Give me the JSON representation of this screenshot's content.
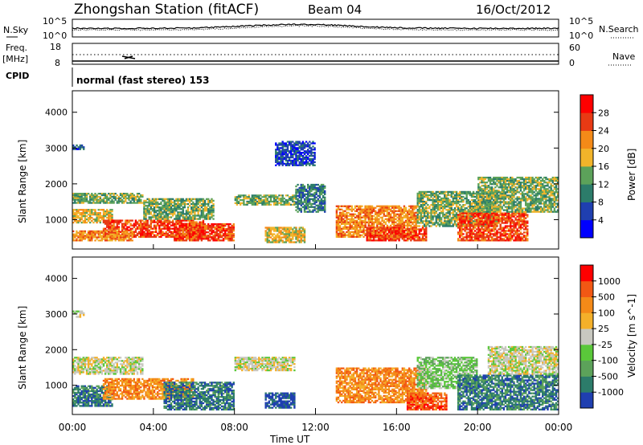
{
  "header": {
    "station_title": "Zhongshan Station (fitACF)",
    "beam": "Beam 04",
    "date": "16/Oct/2012"
  },
  "top_panels": {
    "nsky_label": "N.Sky",
    "nsky_ticks": [
      "10^5",
      "10^0"
    ],
    "nsearch_label": "N.Search",
    "nsearch_ticks": [
      "10^5",
      "10^0"
    ],
    "freq_label_1": "Freq.",
    "freq_label_2": "[MHz]",
    "freq_ticks": [
      "18",
      "8"
    ],
    "nave_label": "Nave",
    "nave_ticks": [
      "60",
      "0"
    ],
    "cpid_label": "CPID",
    "cpid_value": "normal (fast stereo) 153"
  },
  "chart_data": [
    {
      "type": "heatmap",
      "name": "power",
      "ylabel": "Slant Range [km]",
      "yticks": [
        "4000",
        "3000",
        "2000",
        "1000"
      ],
      "ylim": [
        180,
        4600
      ],
      "xlim": [
        0,
        24
      ],
      "colorbar_label": "Power [dB]",
      "colorbar_ticks": [
        "28",
        "24",
        "20",
        "16",
        "12",
        "8",
        "4"
      ],
      "colors": [
        "#0000ff",
        "#1f3fb0",
        "#2c7c6a",
        "#5ca25a",
        "#f2b42a",
        "#f48a18",
        "#e83a14",
        "#ff0000"
      ],
      "regions": [
        {
          "t": [
            0.0,
            0.6
          ],
          "r": [
            2950,
            3100
          ],
          "level": 1
        },
        {
          "t": [
            0.0,
            3.5
          ],
          "r": [
            1450,
            1750
          ],
          "level": 3
        },
        {
          "t": [
            0.0,
            2.0
          ],
          "r": [
            900,
            1300
          ],
          "level": 4
        },
        {
          "t": [
            1.5,
            6.5
          ],
          "r": [
            500,
            1000
          ],
          "level": 6
        },
        {
          "t": [
            5.0,
            8.0
          ],
          "r": [
            400,
            900
          ],
          "level": 6
        },
        {
          "t": [
            0.0,
            3.0
          ],
          "r": [
            400,
            700
          ],
          "level": 5
        },
        {
          "t": [
            3.5,
            7.0
          ],
          "r": [
            1000,
            1600
          ],
          "level": 3
        },
        {
          "t": [
            8.0,
            11.0
          ],
          "r": [
            1400,
            1700
          ],
          "level": 3
        },
        {
          "t": [
            9.5,
            11.5
          ],
          "r": [
            350,
            800
          ],
          "level": 4
        },
        {
          "t": [
            11.0,
            12.5
          ],
          "r": [
            1200,
            2000
          ],
          "level": 2
        },
        {
          "t": [
            13.0,
            17.0
          ],
          "r": [
            500,
            1400
          ],
          "level": 5
        },
        {
          "t": [
            14.5,
            17.5
          ],
          "r": [
            400,
            800
          ],
          "level": 6
        },
        {
          "t": [
            17.0,
            21.0
          ],
          "r": [
            800,
            1800
          ],
          "level": 3
        },
        {
          "t": [
            19.0,
            22.5
          ],
          "r": [
            400,
            1200
          ],
          "level": 6
        },
        {
          "t": [
            20.0,
            24.0
          ],
          "r": [
            1200,
            2200
          ],
          "level": 3
        },
        {
          "t": [
            10.0,
            12.0
          ],
          "r": [
            2500,
            3200
          ],
          "level": 1
        }
      ]
    },
    {
      "type": "heatmap",
      "name": "velocity",
      "ylabel": "Slant Range [km]",
      "yticks": [
        "4000",
        "3000",
        "2000",
        "1000"
      ],
      "ylim": [
        180,
        4600
      ],
      "xlim": [
        0,
        24
      ],
      "colorbar_label": "Velocity [m s^-1]",
      "colorbar_ticks": [
        "1000",
        "500",
        "100",
        "25",
        "-25",
        "-100",
        "-500",
        "-1000"
      ],
      "colors": [
        "#1f3fb0",
        "#2c7c6a",
        "#5ca25a",
        "#5ac83a",
        "#c8c8c0",
        "#f4b02a",
        "#f48a18",
        "#f25814",
        "#ff0000"
      ],
      "regions": [
        {
          "t": [
            0.0,
            3.5
          ],
          "r": [
            1300,
            1800
          ],
          "level": 4
        },
        {
          "t": [
            0.0,
            2.0
          ],
          "r": [
            400,
            1000
          ],
          "level": 1
        },
        {
          "t": [
            1.5,
            6.0
          ],
          "r": [
            600,
            1200
          ],
          "level": 6
        },
        {
          "t": [
            4.5,
            8.0
          ],
          "r": [
            300,
            1100
          ],
          "level": 1
        },
        {
          "t": [
            8.0,
            11.0
          ],
          "r": [
            1400,
            1800
          ],
          "level": 4
        },
        {
          "t": [
            9.5,
            11.0
          ],
          "r": [
            350,
            800
          ],
          "level": 0
        },
        {
          "t": [
            13.0,
            17.5
          ],
          "r": [
            500,
            1500
          ],
          "level": 6
        },
        {
          "t": [
            16.5,
            18.5
          ],
          "r": [
            300,
            800
          ],
          "level": 7
        },
        {
          "t": [
            17.0,
            20.0
          ],
          "r": [
            900,
            1800
          ],
          "level": 3
        },
        {
          "t": [
            19.0,
            24.0
          ],
          "r": [
            300,
            1300
          ],
          "level": 1
        },
        {
          "t": [
            20.5,
            24.0
          ],
          "r": [
            1300,
            2100
          ],
          "level": 4
        },
        {
          "t": [
            0.0,
            0.6
          ],
          "r": [
            2900,
            3100
          ],
          "level": 4
        }
      ]
    }
  ],
  "x_axis": {
    "ticks": [
      "00:00",
      "04:00",
      "08:00",
      "12:00",
      "16:00",
      "20:00",
      "00:00"
    ],
    "label": "Time UT"
  }
}
